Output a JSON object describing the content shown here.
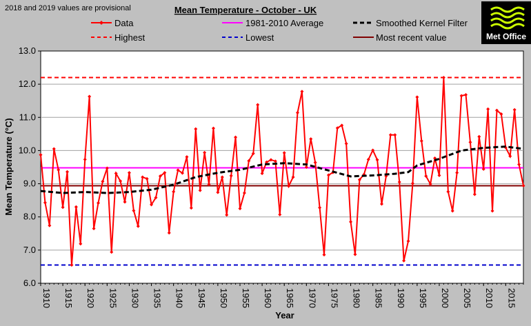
{
  "note": "2018 and 2019 values are provisional",
  "logo": {
    "text": "Met Office",
    "icon": "met-office-wave-logo",
    "bg": "#000000",
    "fg": "#ccff00"
  },
  "colors": {
    "data": "#ff0000",
    "average": "#ff00ff",
    "smoothed": "#000000",
    "highest": "#ff0000",
    "lowest": "#0000cc",
    "recent": "#800000",
    "plot_bg": "#ffffff",
    "page_bg": "#c0c0c0",
    "grid": "#a0a0a0"
  },
  "chart_data": {
    "type": "line",
    "title": "Mean Temperature - October - UK",
    "xlabel": "Year",
    "ylabel": "Mean Temperature (°C)",
    "xlim": [
      1910,
      2019
    ],
    "ylim": [
      6.0,
      13.0
    ],
    "grid": true,
    "yticks": [
      "6.0",
      "7.0",
      "8.0",
      "9.0",
      "10.0",
      "11.0",
      "12.0",
      "13.0"
    ],
    "xticks": [
      "1910",
      "1915",
      "1920",
      "1925",
      "1930",
      "1935",
      "1940",
      "1945",
      "1950",
      "1955",
      "1960",
      "1965",
      "1970",
      "1975",
      "1980",
      "1985",
      "1990",
      "1995",
      "2000",
      "2005",
      "2010",
      "2015"
    ],
    "legend": [
      {
        "key": "data",
        "label": "Data",
        "style": "solid-marker"
      },
      {
        "key": "average",
        "label": "1981-2010 Average",
        "style": "solid"
      },
      {
        "key": "smoothed",
        "label": "Smoothed Kernel Filter",
        "style": "dashed-thick"
      },
      {
        "key": "highest",
        "label": "Highest",
        "style": "dashed"
      },
      {
        "key": "lowest",
        "label": "Lowest",
        "style": "dashed"
      },
      {
        "key": "recent",
        "label": "Most recent value",
        "style": "solid"
      }
    ],
    "series": [
      {
        "name": "Data",
        "x_start": 1910,
        "values": [
          9.87,
          8.43,
          7.74,
          10.05,
          9.42,
          8.29,
          9.36,
          6.55,
          8.3,
          7.19,
          9.73,
          11.63,
          7.65,
          8.42,
          9.07,
          9.47,
          6.94,
          9.31,
          9.08,
          8.45,
          9.33,
          8.19,
          7.72,
          9.2,
          9.15,
          8.37,
          8.58,
          9.23,
          9.33,
          7.52,
          8.76,
          9.41,
          9.32,
          9.81,
          8.27,
          10.65,
          8.8,
          9.94,
          8.98,
          10.67,
          8.74,
          9.2,
          8.06,
          9.24,
          10.4,
          8.25,
          8.72,
          9.69,
          9.91,
          11.38,
          9.31,
          9.65,
          9.72,
          9.68,
          8.07,
          9.93,
          8.93,
          9.2,
          11.14,
          11.78,
          9.5,
          10.35,
          9.64,
          8.28,
          6.86,
          9.26,
          9.34,
          10.68,
          10.76,
          10.21,
          7.85,
          6.87,
          9.12,
          9.28,
          9.73,
          10.01,
          9.72,
          8.39,
          9.23,
          10.47,
          10.47,
          9.05,
          6.68,
          7.27,
          9.01,
          11.61,
          10.29,
          9.23,
          8.99,
          9.77,
          9.25,
          12.2,
          8.76,
          8.18,
          9.33,
          11.65,
          11.68,
          10.25,
          8.68,
          10.42,
          9.44,
          11.25,
          8.18,
          11.21,
          11.1,
          10.09,
          9.83,
          11.23,
          9.58,
          8.94
        ]
      },
      {
        "name": "Smoothed Kernel Filter",
        "x": [
          1910,
          1915,
          1920,
          1925,
          1930,
          1935,
          1940,
          1945,
          1950,
          1955,
          1960,
          1965,
          1970,
          1975,
          1980,
          1985,
          1990,
          1993,
          1995,
          2000,
          2005,
          2010,
          2015,
          2019
        ],
        "values": [
          8.78,
          8.72,
          8.75,
          8.72,
          8.75,
          8.82,
          8.97,
          9.2,
          9.33,
          9.42,
          9.58,
          9.62,
          9.58,
          9.4,
          9.22,
          9.25,
          9.3,
          9.35,
          9.55,
          9.75,
          10.0,
          10.08,
          10.12,
          10.05
        ]
      }
    ],
    "reference_lines": {
      "average": 9.48,
      "highest": 12.2,
      "lowest": 6.55,
      "most_recent": 8.94
    }
  }
}
